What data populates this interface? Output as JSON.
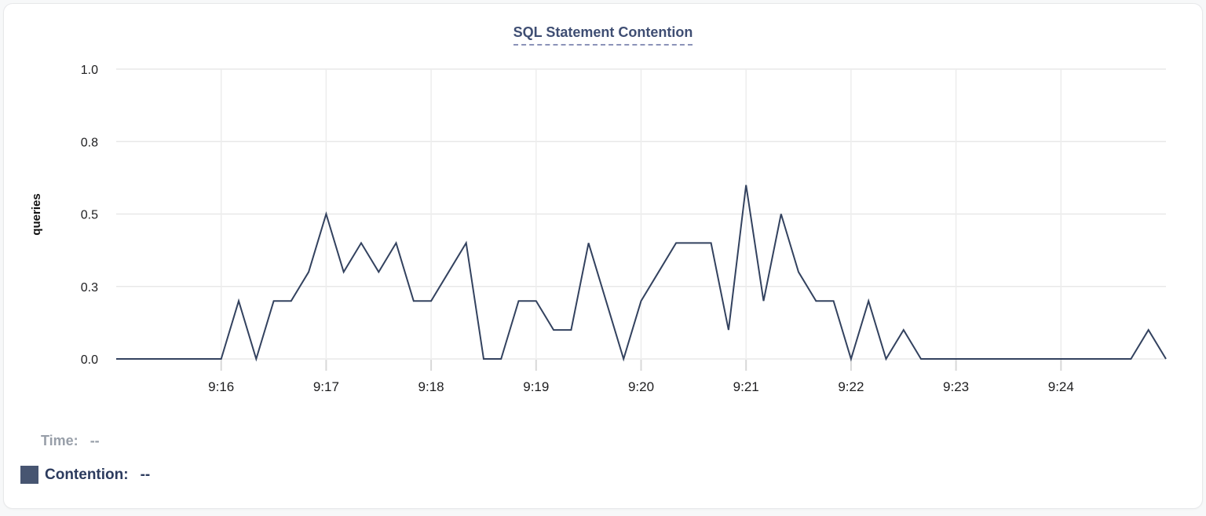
{
  "title": "SQL Statement Contention",
  "legend": {
    "time_label": "Time:",
    "time_value": "--",
    "contention_label": "Contention:",
    "contention_value": "--",
    "swatch_color": "#475571"
  },
  "colors": {
    "line": "#33425f",
    "title_text": "#3f4e73",
    "title_underline": "#8b93b8",
    "grid_h": "#e8e8e8",
    "grid_v": "#ededed",
    "axis_tick": "#d8d8d8",
    "axis_text": "#1d1d1f",
    "muted_text": "#989fa9",
    "card_background": "#ffffff"
  },
  "chart_data": {
    "type": "line",
    "title": "SQL Statement Contention",
    "xlabel": "",
    "ylabel": "queries",
    "x_start": "9:15:00",
    "x_end": "9:25:00",
    "sample_interval_seconds": 10,
    "x_tick_labels": [
      "9:16",
      "9:17",
      "9:18",
      "9:19",
      "9:20",
      "9:21",
      "9:22",
      "9:23",
      "9:24"
    ],
    "y_ticks": [
      {
        "label": "0.0",
        "value": 0
      },
      {
        "label": "0.3",
        "value": 0.25
      },
      {
        "label": "0.5",
        "value": 0.5
      },
      {
        "label": "0.8",
        "value": 0.75
      },
      {
        "label": "1.0",
        "value": 1.0
      }
    ],
    "ylim": [
      0,
      1
    ],
    "grid": true,
    "legend_position": "bottom-left",
    "series": [
      {
        "name": "Contention",
        "unit": "queries",
        "color": "#33425f",
        "values": [
          0,
          0,
          0,
          0,
          0,
          0,
          0,
          0.2,
          0,
          0.2,
          0.2,
          0.3,
          0.5,
          0.3,
          0.4,
          0.3,
          0.4,
          0.2,
          0.2,
          0.3,
          0.4,
          0,
          0,
          0.2,
          0.2,
          0.1,
          0.1,
          0.4,
          0.2,
          0,
          0.2,
          0.3,
          0.4,
          0.4,
          0.4,
          0.1,
          0.6,
          0.2,
          0.5,
          0.3,
          0.2,
          0.2,
          0,
          0.2,
          0,
          0.1,
          0,
          0,
          0,
          0,
          0,
          0,
          0,
          0,
          0,
          0,
          0,
          0,
          0,
          0.1,
          0
        ]
      }
    ]
  }
}
